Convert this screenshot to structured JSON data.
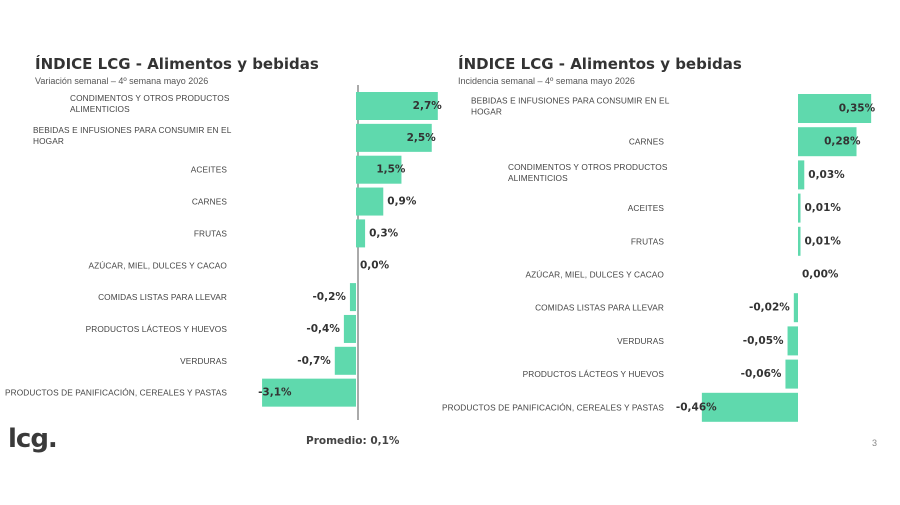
{
  "left_panel": {
    "title": "ÍNDICE LCG - Alimentos y bebidas",
    "subtitle": "Variación semanal – 4º semana mayo 2026"
  },
  "right_panel": {
    "title": "ÍNDICE LCG - Alimentos y bebidas",
    "subtitle": "Incidencia semanal – 4º semana mayo 2026"
  },
  "footer": {
    "logo": "lcg.",
    "average": "Promedio: 0,1%",
    "page_number": "3"
  },
  "colors": {
    "bar": "#5fd9ad",
    "axis": "#555555"
  },
  "chart_data": [
    {
      "type": "bar",
      "orientation": "horizontal",
      "title": "ÍNDICE LCG - Alimentos y bebidas",
      "subtitle": "Variación semanal – 4º semana mayo 2026",
      "unit": "%",
      "categories": [
        [
          "CONDIMENTOS Y OTROS PRODUCTOS",
          "ALIMENTICIOS"
        ],
        [
          "BEBIDAS E INFUSIONES PARA CONSUMIR EN EL",
          "HOGAR"
        ],
        [
          "ACEITES"
        ],
        [
          "CARNES"
        ],
        [
          "FRUTAS"
        ],
        [
          "AZÚCAR, MIEL, DULCES Y CACAO"
        ],
        [
          "COMIDAS LISTAS PARA LLEVAR"
        ],
        [
          "PRODUCTOS LÁCTEOS Y HUEVOS"
        ],
        [
          "VERDURAS"
        ],
        [
          "PRODUCTOS DE PANIFICACIÓN, CEREALES Y PASTAS"
        ]
      ],
      "values": [
        2.7,
        2.5,
        1.5,
        0.9,
        0.3,
        0.0,
        -0.2,
        -0.4,
        -0.7,
        -3.1
      ],
      "labels": [
        "2,7%",
        "2,5%",
        "1,5%",
        "0,9%",
        "0,3%",
        "0,0%",
        "-0,2%",
        "-0,4%",
        "-0,7%",
        "-3,1%"
      ]
    },
    {
      "type": "bar",
      "orientation": "horizontal",
      "title": "ÍNDICE LCG - Alimentos y bebidas",
      "subtitle": "Incidencia semanal – 4º semana mayo 2026",
      "unit": "%",
      "categories": [
        [
          "BEBIDAS E INFUSIONES PARA CONSUMIR EN EL",
          "HOGAR"
        ],
        [
          "CARNES"
        ],
        [
          "CONDIMENTOS Y OTROS PRODUCTOS",
          "ALIMENTICIOS"
        ],
        [
          "ACEITES"
        ],
        [
          "FRUTAS"
        ],
        [
          "AZÚCAR, MIEL, DULCES Y CACAO"
        ],
        [
          "COMIDAS LISTAS PARA LLEVAR"
        ],
        [
          "VERDURAS"
        ],
        [
          "PRODUCTOS LÁCTEOS Y HUEVOS"
        ],
        [
          "PRODUCTOS DE PANIFICACIÓN, CEREALES Y PASTAS"
        ]
      ],
      "values": [
        0.35,
        0.28,
        0.03,
        0.01,
        0.01,
        0.0,
        -0.02,
        -0.05,
        -0.06,
        -0.46
      ],
      "labels": [
        "0,35%",
        "0,28%",
        "0,03%",
        "0,01%",
        "0,01%",
        "0,00%",
        "-0,02%",
        "-0,05%",
        "-0,06%",
        "-0,46%"
      ]
    }
  ]
}
